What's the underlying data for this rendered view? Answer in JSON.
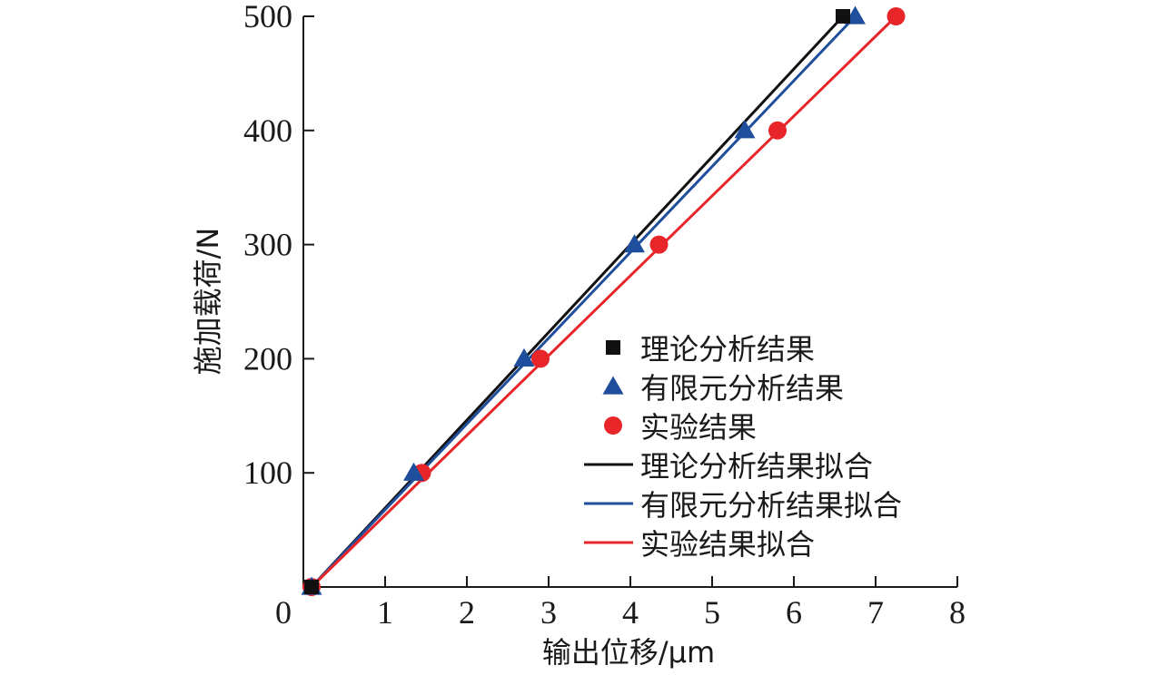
{
  "chart_data": {
    "type": "line",
    "xlabel": "输出位移/μm",
    "ylabel": "施加载荷/N",
    "xlim": [
      0,
      8
    ],
    "ylim": [
      0,
      500
    ],
    "x_ticks": [
      "0",
      "1",
      "2",
      "3",
      "4",
      "5",
      "6",
      "7",
      "8"
    ],
    "y_ticks": [
      "100",
      "200",
      "300",
      "400",
      "500"
    ],
    "legend_position": "center-right",
    "series": [
      {
        "name": "理论分析结果",
        "kind": "markers",
        "marker": "square",
        "color": "#111111",
        "x": [
          0.1,
          6.6
        ],
        "y": [
          0,
          500
        ]
      },
      {
        "name": "有限元分析结果",
        "kind": "markers",
        "marker": "triangle",
        "color": "#1f4e9c",
        "x": [
          0.1,
          1.35,
          2.7,
          4.05,
          5.4,
          6.75
        ],
        "y": [
          0,
          100,
          200,
          300,
          400,
          500
        ]
      },
      {
        "name": "实验结果",
        "kind": "markers",
        "marker": "circle",
        "color": "#e8262a",
        "x": [
          0.1,
          1.45,
          2.9,
          4.35,
          5.8,
          7.25
        ],
        "y": [
          0,
          100,
          200,
          300,
          400,
          500
        ]
      },
      {
        "name": "理论分析结果拟合",
        "kind": "line",
        "color": "#111111",
        "x": [
          0.1,
          6.6
        ],
        "y": [
          0,
          500
        ]
      },
      {
        "name": "有限元分析结果拟合",
        "kind": "line",
        "color": "#1f4e9c",
        "x": [
          0.1,
          6.75
        ],
        "y": [
          0,
          500
        ]
      },
      {
        "name": "实验结果拟合",
        "kind": "line",
        "color": "#e8262a",
        "x": [
          0.1,
          7.25
        ],
        "y": [
          0,
          500
        ]
      }
    ]
  }
}
